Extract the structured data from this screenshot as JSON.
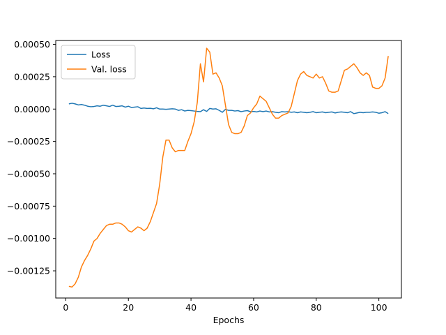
{
  "chart_data": {
    "type": "line",
    "title": "",
    "xlabel": "Epochs",
    "ylabel": "",
    "xlim": [
      -3.2,
      107.2
    ],
    "ylim": [
      -0.00146,
      0.00053
    ],
    "xticks": [
      0,
      20,
      40,
      60,
      80,
      100
    ],
    "xtick_labels": [
      "0",
      "20",
      "40",
      "60",
      "80",
      "100"
    ],
    "yticks": [
      0.0005,
      0.00025,
      0.0,
      -0.00025,
      -0.0005,
      -0.00075,
      -0.001,
      -0.00125
    ],
    "ytick_labels": [
      "0.00050",
      "0.00025",
      "0.00000",
      "−0.00025",
      "−0.00050",
      "−0.00075",
      "−0.00100",
      "−0.00125"
    ],
    "grid": false,
    "legend_position": "top-left",
    "series": [
      {
        "name": "Loss",
        "color": "#1f77b4",
        "x": [
          1,
          2,
          3,
          4,
          5,
          6,
          7,
          8,
          9,
          10,
          11,
          12,
          13,
          14,
          15,
          16,
          17,
          18,
          19,
          20,
          21,
          22,
          23,
          24,
          25,
          26,
          27,
          28,
          29,
          30,
          31,
          32,
          33,
          34,
          35,
          36,
          37,
          38,
          39,
          40,
          41,
          42,
          43,
          44,
          45,
          46,
          47,
          48,
          49,
          50,
          51,
          52,
          53,
          54,
          55,
          56,
          57,
          58,
          59,
          60,
          61,
          62,
          63,
          64,
          65,
          66,
          67,
          68,
          69,
          70,
          71,
          72,
          73,
          74,
          75,
          76,
          77,
          78,
          79,
          80,
          81,
          82,
          83,
          84,
          85,
          86,
          87,
          88,
          89,
          90,
          91,
          92,
          93,
          94,
          95,
          96,
          97,
          98,
          99,
          100,
          101,
          102,
          103
        ],
        "y": [
          4e-05,
          4.5e-05,
          4e-05,
          3.2e-05,
          3.5e-05,
          3e-05,
          2.2e-05,
          1.8e-05,
          2e-05,
          2.5e-05,
          2.2e-05,
          3e-05,
          2.5e-05,
          2e-05,
          3e-05,
          2e-05,
          2.2e-05,
          2.5e-05,
          1.5e-05,
          2.2e-05,
          1.2e-05,
          1.5e-05,
          1.8e-05,
          5e-06,
          8e-06,
          5e-06,
          6e-06,
          2e-06,
          1e-05,
          0.0,
          0.0,
          -2e-06,
          0.0,
          2e-06,
          0.0,
          -1e-05,
          -5e-06,
          -1.5e-05,
          -1e-05,
          -1.2e-05,
          -1.5e-05,
          -1.8e-05,
          -2e-05,
          -5e-06,
          -1.8e-05,
          5e-06,
          0.0,
          2e-06,
          -1e-05,
          -2.5e-05,
          -2e-06,
          -1e-05,
          -1e-05,
          -1.5e-05,
          -1.2e-05,
          -2e-05,
          -1.5e-05,
          -1.2e-05,
          -2e-05,
          -1.8e-05,
          -2.2e-05,
          -1.5e-05,
          -2e-05,
          -1.5e-05,
          -2.2e-05,
          -2e-05,
          -2.5e-05,
          -2.8e-05,
          -2e-05,
          -2.2e-05,
          -2e-05,
          -2.5e-05,
          -2.2e-05,
          -2.8e-05,
          -2.2e-05,
          -2.5e-05,
          -2.8e-05,
          -2.5e-05,
          -2e-05,
          -2.8e-05,
          -2.5e-05,
          -2.2e-05,
          -2.8e-05,
          -2.5e-05,
          -2.2e-05,
          -3e-05,
          -2.5e-05,
          -2.2e-05,
          -2.5e-05,
          -2.8e-05,
          -2e-05,
          -3.5e-05,
          -3e-05,
          -2.5e-05,
          -2.8e-05,
          -2.5e-05,
          -2.5e-05,
          -2.2e-05,
          -2.5e-05,
          -3.2e-05,
          -2.8e-05,
          -2e-05,
          -3.5e-05
        ]
      },
      {
        "name": "Val. loss",
        "color": "#ff7f0e",
        "x": [
          1,
          2,
          3,
          4,
          5,
          6,
          7,
          8,
          9,
          10,
          11,
          12,
          13,
          14,
          15,
          16,
          17,
          18,
          19,
          20,
          21,
          22,
          23,
          24,
          25,
          26,
          27,
          28,
          29,
          30,
          31,
          32,
          33,
          34,
          35,
          36,
          37,
          38,
          39,
          40,
          41,
          42,
          43,
          44,
          45,
          46,
          47,
          48,
          49,
          50,
          51,
          52,
          53,
          54,
          55,
          56,
          57,
          58,
          59,
          60,
          61,
          62,
          63,
          64,
          65,
          66,
          67,
          68,
          69,
          70,
          71,
          72,
          73,
          74,
          75,
          76,
          77,
          78,
          79,
          80,
          81,
          82,
          83,
          84,
          85,
          86,
          87,
          88,
          89,
          90,
          91,
          92,
          93,
          94,
          95,
          96,
          97,
          98,
          99,
          100,
          101,
          102,
          103
        ],
        "y": [
          -0.00137,
          -0.001375,
          -0.00135,
          -0.0013,
          -0.00122,
          -0.00117,
          -0.00113,
          -0.00108,
          -0.00102,
          -0.001,
          -0.00096,
          -0.00093,
          -0.0009,
          -0.00089,
          -0.00089,
          -0.00088,
          -0.00088,
          -0.00089,
          -0.00091,
          -0.00094,
          -0.00095,
          -0.00093,
          -0.00091,
          -0.00092,
          -0.00094,
          -0.00092,
          -0.00087,
          -0.0008,
          -0.00073,
          -0.00058,
          -0.00037,
          -0.00024,
          -0.00024,
          -0.0003,
          -0.00033,
          -0.00032,
          -0.00032,
          -0.00032,
          -0.00025,
          -0.00019,
          -0.0001,
          5e-05,
          0.00035,
          0.00021,
          0.00047,
          0.00044,
          0.00027,
          0.00028,
          0.00024,
          0.00018,
          3e-05,
          -0.00012,
          -0.00018,
          -0.00019,
          -0.00019,
          -0.00018,
          -0.00013,
          -5e-05,
          -3e-05,
          1e-05,
          4e-05,
          0.0001,
          8e-05,
          6e-05,
          1e-05,
          -4e-05,
          -7e-05,
          -7e-05,
          -5e-05,
          -4e-05,
          -3e-05,
          2e-05,
          0.00012,
          0.00022,
          0.00027,
          0.00029,
          0.00026,
          0.00025,
          0.00024,
          0.00027,
          0.00024,
          0.00025,
          0.0002,
          0.00014,
          0.00013,
          0.00013,
          0.00014,
          0.00022,
          0.0003,
          0.00031,
          0.00033,
          0.00035,
          0.00032,
          0.00028,
          0.00026,
          0.00028,
          0.00026,
          0.00017,
          0.00016,
          0.00016,
          0.00018,
          0.00024,
          0.00041
        ]
      }
    ]
  }
}
